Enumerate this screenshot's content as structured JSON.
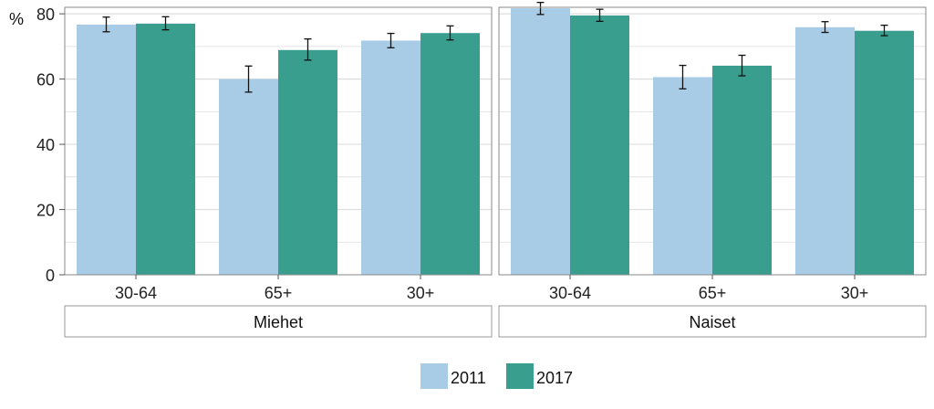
{
  "chart_data": {
    "type": "bar",
    "ylabel": "%",
    "ylim": [
      0,
      82
    ],
    "yticks": [
      0,
      20,
      40,
      60,
      80
    ],
    "grid": true,
    "legend_position": "bottom",
    "categories": [
      "30-64",
      "65+",
      "30+"
    ],
    "colors": {
      "2011": "#a9cce6",
      "2017": "#3a9e8f"
    },
    "panels": [
      {
        "name": "Miehet",
        "series": [
          {
            "name": "2011",
            "values": [
              76.7,
              60.0,
              71.8
            ],
            "ci_low": [
              74.5,
              56.0,
              69.6
            ],
            "ci_high": [
              79.0,
              64.0,
              74.0
            ]
          },
          {
            "name": "2017",
            "values": [
              77.0,
              68.9,
              74.1
            ],
            "ci_low": [
              75.1,
              65.8,
              72.0
            ],
            "ci_high": [
              79.1,
              72.3,
              76.3
            ]
          }
        ]
      },
      {
        "name": "Naiset",
        "series": [
          {
            "name": "2011",
            "values": [
              81.7,
              60.6,
              75.9
            ],
            "ci_low": [
              79.8,
              57.0,
              74.3
            ],
            "ci_high": [
              83.5,
              64.2,
              77.6
            ]
          },
          {
            "name": "2017",
            "values": [
              79.5,
              64.1,
              74.8
            ],
            "ci_low": [
              77.7,
              61.0,
              73.3
            ],
            "ci_high": [
              81.4,
              67.3,
              76.5
            ]
          }
        ]
      }
    ]
  }
}
